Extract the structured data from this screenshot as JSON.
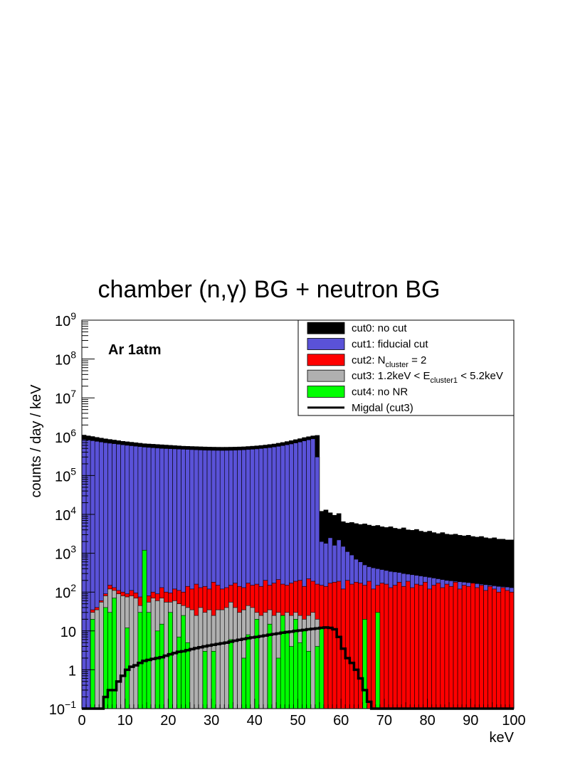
{
  "chart_data": {
    "type": "histogram",
    "title": "chamber (n,γ) BG + neutron BG",
    "xlabel": "keV",
    "ylabel": "counts / day / keV",
    "annotation": "Ar 1atm",
    "xlim": [
      0,
      100
    ],
    "ylim": [
      0.1,
      1000000000
    ],
    "log_y": true,
    "grid": false,
    "bin_width": 1,
    "legend_position": "top-right",
    "x_ticks": [
      "0",
      "10",
      "20",
      "30",
      "40",
      "50",
      "60",
      "70",
      "80",
      "90",
      "100"
    ],
    "y_ticks": [
      {
        "base": "10",
        "exp": "−1"
      },
      {
        "base": "1",
        "exp": ""
      },
      {
        "base": "10",
        "exp": ""
      },
      {
        "base": "10",
        "exp": "2"
      },
      {
        "base": "10",
        "exp": "3"
      },
      {
        "base": "10",
        "exp": "4"
      },
      {
        "base": "10",
        "exp": "5"
      },
      {
        "base": "10",
        "exp": "6"
      },
      {
        "base": "10",
        "exp": "7"
      },
      {
        "base": "10",
        "exp": "8"
      },
      {
        "base": "10",
        "exp": "9"
      }
    ],
    "legend": [
      {
        "key": "cut0",
        "label": "cut0: no cut",
        "color": "#000000",
        "style": "fill"
      },
      {
        "key": "cut1",
        "label": "cut1: fiducial cut",
        "color": "#5a52d8",
        "style": "fill"
      },
      {
        "key": "cut2",
        "label_pre": "cut2: N",
        "label_sub": "cluster",
        "label_post": " = 2",
        "color": "#ff0000",
        "style": "fill"
      },
      {
        "key": "cut3",
        "label_pre": "cut3: 1.2keV < E",
        "label_sub": "cluster1",
        "label_post": " < 5.2keV",
        "color": "#b0b0b0",
        "style": "fill"
      },
      {
        "key": "cut4",
        "label": "cut4: no NR",
        "color": "#00ff00",
        "style": "fill"
      },
      {
        "key": "migdal",
        "label": "Migdal (cut3)",
        "color": "#000000",
        "style": "line"
      }
    ],
    "series": [
      {
        "name": "cut0: no cut",
        "key": "cut0",
        "color": "#000000",
        "values": [
          1100000,
          1050000,
          1000000,
          960000,
          920000,
          880000,
          850000,
          820000,
          790000,
          760000,
          740000,
          720000,
          700000,
          680000,
          660000,
          650000,
          640000,
          630000,
          620000,
          610000,
          600000,
          590000,
          580000,
          570000,
          565000,
          560000,
          555000,
          550000,
          545000,
          540000,
          538000,
          536000,
          535000,
          536000,
          538000,
          540000,
          545000,
          550000,
          560000,
          570000,
          580000,
          595000,
          610000,
          630000,
          650000,
          680000,
          710000,
          750000,
          790000,
          840000,
          890000,
          950000,
          1000000,
          1050000,
          1080000,
          12000,
          13000,
          11000,
          9500,
          10500,
          6500,
          6000,
          6200,
          5800,
          5500,
          5700,
          5300,
          5000,
          5200,
          4800,
          4600,
          4800,
          4400,
          4200,
          4500,
          4000,
          3900,
          4100,
          3700,
          3500,
          3700,
          3400,
          3200,
          3400,
          3100,
          3000,
          3100,
          2900,
          2800,
          2900,
          2700,
          2600,
          2700,
          2500,
          2400,
          2500,
          2300,
          2300,
          2200,
          2200
        ]
      },
      {
        "name": "cut1: fiducial cut",
        "key": "cut1",
        "color": "#5a52d8",
        "values": [
          850000,
          820000,
          790000,
          760000,
          730000,
          700000,
          680000,
          660000,
          640000,
          620000,
          600000,
          585000,
          570000,
          555000,
          540000,
          530000,
          520000,
          510000,
          500000,
          495000,
          490000,
          485000,
          480000,
          475000,
          470000,
          465000,
          460000,
          455000,
          450000,
          448000,
          446000,
          445000,
          444000,
          445000,
          447000,
          450000,
          455000,
          460000,
          468000,
          476000,
          485000,
          497000,
          510000,
          525000,
          545000,
          565000,
          590000,
          620000,
          650000,
          690000,
          730000,
          780000,
          830000,
          880000,
          300000,
          2000,
          1800,
          2500,
          1600,
          2200,
          1500,
          1100,
          900,
          700,
          600,
          500,
          450,
          420,
          400,
          380,
          360,
          340,
          330,
          320,
          300,
          290,
          280,
          270,
          260,
          250,
          240,
          230,
          220,
          210,
          200,
          195,
          190,
          185,
          180,
          175,
          170,
          165,
          160,
          155,
          150,
          145,
          140,
          138,
          135,
          130
        ]
      },
      {
        "name": "cut2: N_cluster = 2",
        "key": "cut2",
        "color": "#ff0000",
        "values": [
          0,
          0,
          35,
          40,
          60,
          90,
          150,
          130,
          110,
          100,
          90,
          110,
          95,
          75,
          85,
          80,
          100,
          90,
          130,
          100,
          95,
          120,
          110,
          100,
          140,
          120,
          160,
          130,
          140,
          120,
          180,
          150,
          120,
          130,
          150,
          170,
          140,
          130,
          170,
          150,
          160,
          140,
          200,
          150,
          170,
          210,
          160,
          150,
          170,
          190,
          200,
          140,
          220,
          190,
          160,
          150,
          140,
          170,
          180,
          190,
          120,
          200,
          160,
          180,
          170,
          150,
          190,
          120,
          150,
          170,
          160,
          130,
          150,
          180,
          140,
          190,
          130,
          160,
          150,
          180,
          120,
          150,
          170,
          130,
          160,
          140,
          180,
          120,
          150,
          140,
          170,
          130,
          150,
          110,
          140,
          120,
          100,
          130,
          110,
          100
        ]
      },
      {
        "name": "cut3: 1.2keV < E_cluster1 < 5.2keV",
        "key": "cut3",
        "color": "#b0b0b0",
        "values": [
          0,
          0,
          30,
          35,
          55,
          80,
          120,
          110,
          90,
          80,
          75,
          80,
          70,
          45,
          60,
          55,
          70,
          60,
          70,
          55,
          55,
          60,
          50,
          45,
          40,
          35,
          25,
          40,
          30,
          35,
          25,
          35,
          35,
          40,
          55,
          40,
          30,
          35,
          45,
          40,
          30,
          25,
          30,
          35,
          25,
          30,
          25,
          30,
          25,
          30,
          25,
          20,
          25,
          30,
          20,
          0,
          0,
          0,
          0,
          0,
          0,
          0,
          0,
          0,
          0,
          0,
          0,
          0,
          0,
          0,
          0,
          0,
          0,
          0,
          0,
          0,
          0,
          0,
          0,
          0,
          0,
          0,
          0,
          0,
          0,
          0,
          0,
          0,
          0,
          0,
          0,
          0,
          0,
          0,
          0,
          0,
          0,
          0,
          0,
          0
        ]
      },
      {
        "name": "cut4: no NR",
        "key": "cut4",
        "color": "#00ff00",
        "values": [
          0,
          0,
          20,
          0,
          0,
          40,
          30,
          70,
          0,
          0,
          12,
          0,
          0,
          30,
          1200,
          30,
          0,
          10,
          15,
          0,
          30,
          0,
          7,
          25,
          5,
          0,
          0,
          0,
          3,
          0,
          3,
          0,
          0,
          0,
          6,
          0,
          0,
          2,
          8,
          0,
          20,
          0,
          0,
          15,
          0,
          2,
          25,
          10,
          4,
          20,
          5,
          10,
          3,
          0,
          4,
          12,
          0,
          0,
          0,
          0,
          0,
          0,
          0,
          0,
          0,
          20,
          0,
          0,
          30,
          0,
          0,
          0,
          0,
          0,
          0,
          0,
          0,
          0,
          0,
          0,
          0,
          0,
          0,
          0,
          0,
          0,
          0,
          0,
          0,
          0,
          0,
          0,
          0,
          0,
          0,
          0,
          0,
          0,
          0,
          0
        ]
      },
      {
        "name": "Migdal (cut3)",
        "key": "migdal",
        "color": "#000000",
        "values": [
          0,
          0,
          0,
          0,
          0,
          0.2,
          0.3,
          0.3,
          0.5,
          0.7,
          1,
          1.2,
          1.3,
          1.5,
          1.7,
          1.8,
          1.9,
          2,
          2.1,
          2.3,
          2.5,
          2.7,
          2.9,
          3,
          3.2,
          3.4,
          3.6,
          3.8,
          4,
          4.2,
          4.4,
          4.6,
          4.8,
          5,
          5.3,
          5.6,
          5.9,
          6.2,
          6.5,
          6.8,
          7,
          7.3,
          7.6,
          8,
          8.3,
          8.6,
          9,
          9.3,
          9.6,
          10,
          10.3,
          10.6,
          11,
          11.3,
          11.6,
          12,
          12.3,
          12,
          11,
          7,
          3.5,
          2,
          1.5,
          1,
          0.6,
          0.3,
          0.15,
          0.1,
          0,
          0,
          0,
          0,
          0,
          0,
          0,
          0,
          0,
          0,
          0,
          0,
          0,
          0,
          0,
          0,
          0,
          0,
          0,
          0,
          0,
          0,
          0,
          0,
          0,
          0,
          0,
          0,
          0,
          0,
          0,
          0
        ]
      }
    ]
  }
}
